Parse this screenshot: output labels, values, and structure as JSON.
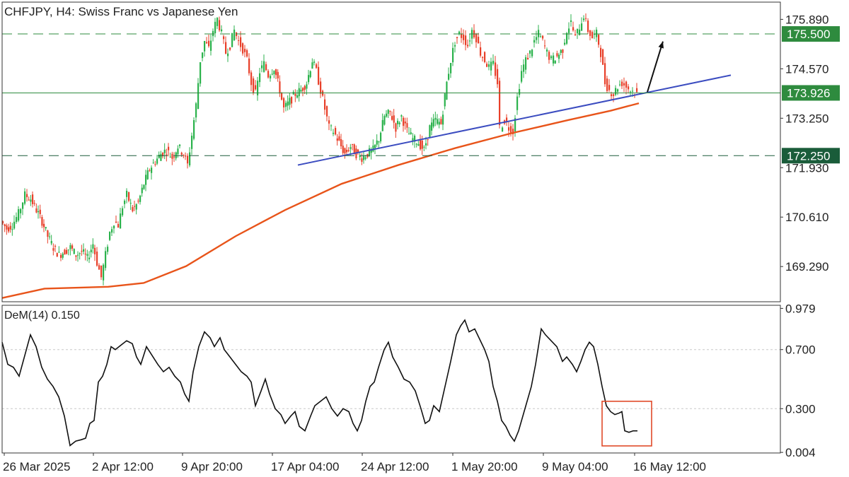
{
  "chart_data": [
    {
      "type": "candlestick",
      "title": "CHFJPY, H4:  Swiss Franc vs Japanese Yen",
      "ylim": [
        168.35,
        176.35
      ],
      "yticks": [
        "175.890",
        "174.570",
        "173.250",
        "171.930",
        "170.610",
        "169.290"
      ],
      "ytick_values": [
        175.89,
        174.57,
        173.25,
        171.93,
        170.61,
        169.29
      ],
      "horizontal_levels": [
        {
          "label": "175.500",
          "value": 175.5,
          "style": "dashed",
          "color": "#2e8b3e"
        },
        {
          "label": "173.926",
          "value": 173.926,
          "style": "solid",
          "color": "#2e8b3e"
        },
        {
          "label": "172.250",
          "value": 172.25,
          "style": "dashed",
          "color": "#1a5c3a"
        }
      ],
      "series_close_path": [
        [
          0,
          170.5
        ],
        [
          8,
          170.3
        ],
        [
          16,
          170.4
        ],
        [
          25,
          170.7
        ],
        [
          34,
          171.2
        ],
        [
          42,
          171.1
        ],
        [
          50,
          170.8
        ],
        [
          58,
          170.5
        ],
        [
          66,
          170.1
        ],
        [
          74,
          169.8
        ],
        [
          82,
          169.6
        ],
        [
          90,
          169.7
        ],
        [
          98,
          169.8
        ],
        [
          106,
          169.6
        ],
        [
          114,
          169.7
        ],
        [
          122,
          169.5
        ],
        [
          130,
          169.9
        ],
        [
          136,
          169.4
        ],
        [
          142,
          169.0
        ],
        [
          148,
          169.6
        ],
        [
          154,
          170.2
        ],
        [
          160,
          170.5
        ],
        [
          166,
          170.4
        ],
        [
          172,
          170.9
        ],
        [
          178,
          171.2
        ],
        [
          186,
          170.8
        ],
        [
          194,
          171.0
        ],
        [
          202,
          171.5
        ],
        [
          210,
          171.9
        ],
        [
          218,
          172.1
        ],
        [
          226,
          172.3
        ],
        [
          234,
          172.4
        ],
        [
          242,
          172.2
        ],
        [
          250,
          172.5
        ],
        [
          258,
          172.3
        ],
        [
          264,
          172.0
        ],
        [
          270,
          172.8
        ],
        [
          276,
          173.6
        ],
        [
          282,
          174.8
        ],
        [
          288,
          175.3
        ],
        [
          294,
          175.1
        ],
        [
          300,
          175.6
        ],
        [
          306,
          175.9
        ],
        [
          312,
          175.5
        ],
        [
          318,
          175.0
        ],
        [
          324,
          175.2
        ],
        [
          330,
          175.6
        ],
        [
          336,
          175.3
        ],
        [
          342,
          175.1
        ],
        [
          348,
          174.8
        ],
        [
          354,
          174.2
        ],
        [
          360,
          173.9
        ],
        [
          366,
          174.5
        ],
        [
          372,
          174.7
        ],
        [
          378,
          174.4
        ],
        [
          386,
          174.6
        ],
        [
          394,
          174.0
        ],
        [
          400,
          173.5
        ],
        [
          408,
          173.7
        ],
        [
          416,
          173.9
        ],
        [
          424,
          174.0
        ],
        [
          432,
          174.2
        ],
        [
          440,
          174.8
        ],
        [
          446,
          174.5
        ],
        [
          452,
          174.0
        ],
        [
          458,
          173.5
        ],
        [
          464,
          173.0
        ],
        [
          470,
          172.9
        ],
        [
          478,
          172.6
        ],
        [
          486,
          172.3
        ],
        [
          494,
          172.5
        ],
        [
          502,
          172.3
        ],
        [
          510,
          172.2
        ],
        [
          518,
          172.3
        ],
        [
          526,
          172.4
        ],
        [
          534,
          172.7
        ],
        [
          542,
          173.3
        ],
        [
          550,
          173.4
        ],
        [
          558,
          173.0
        ],
        [
          566,
          173.3
        ],
        [
          574,
          172.9
        ],
        [
          582,
          172.7
        ],
        [
          590,
          172.6
        ],
        [
          598,
          172.4
        ],
        [
          606,
          173.0
        ],
        [
          614,
          173.2
        ],
        [
          622,
          173.1
        ],
        [
          630,
          174.2
        ],
        [
          636,
          174.8
        ],
        [
          642,
          175.3
        ],
        [
          648,
          175.5
        ],
        [
          654,
          175.4
        ],
        [
          660,
          175.2
        ],
        [
          666,
          175.6
        ],
        [
          672,
          175.4
        ],
        [
          678,
          175.0
        ],
        [
          684,
          174.8
        ],
        [
          690,
          174.6
        ],
        [
          696,
          174.7
        ],
        [
          702,
          174.2
        ],
        [
          706,
          173.0
        ],
        [
          712,
          173.2
        ],
        [
          718,
          173.0
        ],
        [
          724,
          172.9
        ],
        [
          730,
          173.8
        ],
        [
          736,
          174.5
        ],
        [
          742,
          174.8
        ],
        [
          748,
          175.0
        ],
        [
          754,
          175.3
        ],
        [
          760,
          175.5
        ],
        [
          766,
          175.3
        ],
        [
          772,
          175.0
        ],
        [
          778,
          174.8
        ],
        [
          786,
          174.9
        ],
        [
          794,
          175.1
        ],
        [
          800,
          175.6
        ],
        [
          806,
          175.8
        ],
        [
          812,
          175.4
        ],
        [
          818,
          175.7
        ],
        [
          824,
          176.0
        ],
        [
          830,
          175.6
        ],
        [
          836,
          175.4
        ],
        [
          842,
          175.5
        ],
        [
          848,
          175.0
        ],
        [
          854,
          174.2
        ],
        [
          860,
          174.0
        ],
        [
          866,
          173.9
        ],
        [
          872,
          174.1
        ],
        [
          878,
          174.2
        ],
        [
          884,
          174.1
        ],
        [
          890,
          174.0
        ],
        [
          896,
          173.95
        ],
        [
          900,
          173.9
        ]
      ],
      "moving_average": {
        "color": "#e8541a",
        "points": [
          [
            0,
            168.45
          ],
          [
            60,
            168.7
          ],
          [
            150,
            168.75
          ],
          [
            200,
            168.85
          ],
          [
            260,
            169.3
          ],
          [
            330,
            170.1
          ],
          [
            400,
            170.8
          ],
          [
            480,
            171.5
          ],
          [
            560,
            172.0
          ],
          [
            640,
            172.45
          ],
          [
            720,
            172.85
          ],
          [
            800,
            173.2
          ],
          [
            860,
            173.45
          ],
          [
            900,
            173.65
          ]
        ]
      },
      "trendline": {
        "color": "#3b4cc0",
        "from": [
          418,
          172.0
        ],
        "to": [
          1030,
          174.4
        ]
      },
      "arrow": {
        "color": "#111111",
        "from": [
          912,
          173.95
        ],
        "to": [
          934,
          175.3
        ]
      }
    },
    {
      "type": "line",
      "title": "DeM(14) 0.150",
      "ylim": [
        0.0,
        1.0
      ],
      "yticks": [
        "0.979",
        "0.700",
        "0.300",
        "0.004"
      ],
      "ytick_values": [
        0.979,
        0.7,
        0.3,
        0.004
      ],
      "gridlines": [
        0.7,
        0.3
      ],
      "highlight_box": {
        "x": [
          848,
          918
        ],
        "y": [
          0.0,
          0.35
        ],
        "color": "#e04a2a"
      },
      "series": [
        {
          "values": [
            [
              0,
              0.75
            ],
            [
              8,
              0.6
            ],
            [
              16,
              0.58
            ],
            [
              24,
              0.52
            ],
            [
              32,
              0.66
            ],
            [
              40,
              0.8
            ],
            [
              48,
              0.72
            ],
            [
              56,
              0.58
            ],
            [
              64,
              0.5
            ],
            [
              72,
              0.45
            ],
            [
              80,
              0.38
            ],
            [
              88,
              0.25
            ],
            [
              96,
              0.05
            ],
            [
              104,
              0.08
            ],
            [
              112,
              0.09
            ],
            [
              118,
              0.1
            ],
            [
              124,
              0.2
            ],
            [
              130,
              0.22
            ],
            [
              136,
              0.48
            ],
            [
              142,
              0.52
            ],
            [
              148,
              0.6
            ],
            [
              154,
              0.72
            ],
            [
              160,
              0.7
            ],
            [
              168,
              0.73
            ],
            [
              176,
              0.76
            ],
            [
              184,
              0.74
            ],
            [
              190,
              0.65
            ],
            [
              196,
              0.6
            ],
            [
              204,
              0.72
            ],
            [
              212,
              0.66
            ],
            [
              220,
              0.6
            ],
            [
              228,
              0.55
            ],
            [
              236,
              0.58
            ],
            [
              244,
              0.52
            ],
            [
              252,
              0.48
            ],
            [
              258,
              0.4
            ],
            [
              264,
              0.35
            ],
            [
              270,
              0.55
            ],
            [
              278,
              0.72
            ],
            [
              286,
              0.82
            ],
            [
              294,
              0.78
            ],
            [
              300,
              0.72
            ],
            [
              308,
              0.78
            ],
            [
              314,
              0.7
            ],
            [
              322,
              0.65
            ],
            [
              330,
              0.6
            ],
            [
              338,
              0.55
            ],
            [
              346,
              0.52
            ],
            [
              352,
              0.48
            ],
            [
              358,
              0.32
            ],
            [
              366,
              0.42
            ],
            [
              372,
              0.5
            ],
            [
              378,
              0.4
            ],
            [
              386,
              0.3
            ],
            [
              394,
              0.26
            ],
            [
              400,
              0.2
            ],
            [
              408,
              0.25
            ],
            [
              414,
              0.28
            ],
            [
              420,
              0.18
            ],
            [
              428,
              0.15
            ],
            [
              436,
              0.25
            ],
            [
              442,
              0.32
            ],
            [
              450,
              0.35
            ],
            [
              458,
              0.38
            ],
            [
              466,
              0.3
            ],
            [
              474,
              0.25
            ],
            [
              482,
              0.3
            ],
            [
              490,
              0.28
            ],
            [
              496,
              0.2
            ],
            [
              502,
              0.15
            ],
            [
              508,
              0.22
            ],
            [
              514,
              0.35
            ],
            [
              520,
              0.45
            ],
            [
              526,
              0.48
            ],
            [
              532,
              0.58
            ],
            [
              540,
              0.7
            ],
            [
              546,
              0.75
            ],
            [
              552,
              0.65
            ],
            [
              560,
              0.58
            ],
            [
              568,
              0.5
            ],
            [
              576,
              0.48
            ],
            [
              584,
              0.42
            ],
            [
              592,
              0.3
            ],
            [
              598,
              0.2
            ],
            [
              604,
              0.22
            ],
            [
              610,
              0.32
            ],
            [
              618,
              0.28
            ],
            [
              626,
              0.45
            ],
            [
              634,
              0.62
            ],
            [
              642,
              0.8
            ],
            [
              648,
              0.86
            ],
            [
              654,
              0.9
            ],
            [
              660,
              0.82
            ],
            [
              668,
              0.84
            ],
            [
              674,
              0.78
            ],
            [
              682,
              0.7
            ],
            [
              688,
              0.62
            ],
            [
              694,
              0.45
            ],
            [
              700,
              0.35
            ],
            [
              706,
              0.22
            ],
            [
              712,
              0.18
            ],
            [
              718,
              0.12
            ],
            [
              724,
              0.08
            ],
            [
              730,
              0.15
            ],
            [
              736,
              0.25
            ],
            [
              742,
              0.35
            ],
            [
              748,
              0.45
            ],
            [
              754,
              0.6
            ],
            [
              762,
              0.84
            ],
            [
              768,
              0.8
            ],
            [
              776,
              0.76
            ],
            [
              784,
              0.72
            ],
            [
              792,
              0.62
            ],
            [
              798,
              0.65
            ],
            [
              806,
              0.6
            ],
            [
              812,
              0.55
            ],
            [
              818,
              0.62
            ],
            [
              824,
              0.7
            ],
            [
              830,
              0.75
            ],
            [
              836,
              0.72
            ],
            [
              842,
              0.6
            ],
            [
              848,
              0.45
            ],
            [
              854,
              0.32
            ],
            [
              860,
              0.28
            ],
            [
              866,
              0.26
            ],
            [
              872,
              0.27
            ],
            [
              876,
              0.28
            ],
            [
              880,
              0.15
            ],
            [
              886,
              0.14
            ],
            [
              892,
              0.15
            ],
            [
              898,
              0.15
            ]
          ]
        }
      ]
    }
  ],
  "xaxis": {
    "tick_labels": [
      "26 Mar 2025",
      "2 Apr 12:00",
      "9 Apr 20:00",
      "17 Apr 04:00",
      "24 Apr 12:00",
      "1 May 20:00",
      "9 May 04:00",
      "16 May 12:00"
    ]
  },
  "colors": {
    "bull": "#2bb24c",
    "bear": "#e8402a",
    "grid": "#c8c8c8",
    "level_green": "#2e8b3e",
    "level_dark": "#1a5c3a"
  }
}
